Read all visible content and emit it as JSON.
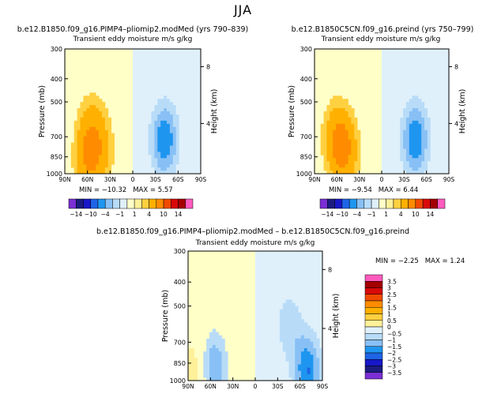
{
  "figure": {
    "season": "JJA"
  },
  "colors": {
    "palette_14": [
      "#7a2fd4",
      "#1c1c80",
      "#1818c8",
      "#1e64e6",
      "#1e96f0",
      "#88c0f5",
      "#b8dcf8",
      "#dff0fb",
      "#ffffc8",
      "#fff09a",
      "#ffd040",
      "#ffb000",
      "#ff8c00",
      "#f04a00",
      "#d80a0a",
      "#a40000",
      "#ff5bbf"
    ],
    "palette_diff": [
      "#7a2fd4",
      "#1c1c80",
      "#1818c8",
      "#1e64e6",
      "#1e96f0",
      "#88c0f5",
      "#b8dcf8",
      "#dff0fb",
      "#ffffc8",
      "#fff09a",
      "#ffd040",
      "#ffb000",
      "#ff8c00",
      "#f04a00",
      "#d80a0a",
      "#a40000",
      "#ff5bbf"
    ]
  },
  "chart_data": [
    {
      "id": "panel-pliomip",
      "type": "heatmap",
      "title": "b.e12.B1850.f09_g16.PIMP4–pliomip2.modMed (yrs 790–839)",
      "subtitle": "Transient eddy moisture m/s g/kg",
      "xlabel": "",
      "ylabel": "Pressure (mb)",
      "y2label": "Height (km)",
      "x_ticks": [
        "90N",
        "60N",
        "30N",
        "0",
        "30S",
        "60S",
        "90S"
      ],
      "y_ticks": [
        "300",
        "400",
        "500",
        "700",
        "850",
        "1000"
      ],
      "y2_ticks": [
        "8",
        "4"
      ],
      "ylim": [
        1000,
        300
      ],
      "min_label": "MIN =",
      "min_value": "−10.32",
      "max_label": "MAX =",
      "max_value": "5.57",
      "levels": [
        -14,
        -12,
        -10,
        -8,
        -6,
        -4,
        -2,
        -1,
        0,
        1,
        2,
        4,
        6,
        8,
        10,
        12,
        14
      ],
      "level_labels": [
        "−14",
        "−10",
        "−4",
        "−1",
        "1",
        "4",
        "10",
        "14"
      ],
      "features": [
        {
          "lat": 60,
          "p": 880,
          "value": 3.0,
          "kind": "max"
        },
        {
          "lat": 55,
          "p": 650,
          "value": 2.2,
          "kind": "secondary max"
        },
        {
          "lat": 42,
          "p": 800,
          "value": 2.0,
          "kind": "secondary max"
        },
        {
          "lat": -42,
          "p": 720,
          "value": -8.0,
          "kind": "min"
        }
      ]
    },
    {
      "id": "panel-preind",
      "type": "heatmap",
      "title": "b.e12.B1850C5CN.f09_g16.preind (yrs 750–799)",
      "subtitle": "Transient eddy moisture m/s g/kg",
      "xlabel": "",
      "ylabel": "Pressure (mb)",
      "y2label": "Height (km)",
      "x_ticks": [
        "90N",
        "60N",
        "30N",
        "0",
        "30S",
        "60S",
        "90S"
      ],
      "y_ticks": [
        "300",
        "400",
        "500",
        "700",
        "850",
        "1000"
      ],
      "y2_ticks": [
        "8",
        "4"
      ],
      "ylim": [
        1000,
        300
      ],
      "min_label": "MIN =",
      "min_value": "−9.54",
      "max_label": "MAX =",
      "max_value": "6.44",
      "levels": [
        -14,
        -12,
        -10,
        -8,
        -6,
        -4,
        -2,
        -1,
        0,
        1,
        2,
        4,
        6,
        8,
        10,
        12,
        14
      ],
      "level_labels": [
        "−14",
        "−10",
        "−4",
        "−1",
        "1",
        "4",
        "10",
        "14"
      ],
      "features": [
        {
          "lat": 50,
          "p": 800,
          "value": 4.0,
          "kind": "max"
        },
        {
          "lat": 62,
          "p": 700,
          "value": 2.5,
          "kind": "secondary max"
        },
        {
          "lat": -45,
          "p": 720,
          "value": -8.0,
          "kind": "min"
        }
      ]
    },
    {
      "id": "panel-diff",
      "type": "heatmap",
      "title": "b.e12.B1850.f09_g16.PIMP4–pliomip2.modMed – b.e12.B1850C5CN.f09_g16.preind",
      "subtitle": "Transient eddy moisture m/s g/kg",
      "xlabel": "",
      "ylabel": "Pressure (mb)",
      "y2label": "Height (km)",
      "x_ticks": [
        "90N",
        "60N",
        "30N",
        "0",
        "30S",
        "60S",
        "90S"
      ],
      "y_ticks": [
        "300",
        "400",
        "500",
        "700",
        "850",
        "1000"
      ],
      "y2_ticks": [
        "8",
        "4"
      ],
      "ylim": [
        1000,
        300
      ],
      "min_label": "MIN =",
      "min_value": "−2.25",
      "max_label": "MAX =",
      "max_value": "1.24",
      "levels": [
        -3.5,
        -3,
        -2.5,
        -2,
        -1.5,
        -1,
        -0.5,
        0,
        0.5,
        1,
        1.5,
        2,
        2.5,
        3,
        3.5
      ],
      "level_labels": [
        "3.5",
        "3",
        "2.5",
        "2",
        "1.5",
        "1",
        "0.5",
        "0",
        "−0.5",
        "−1",
        "−1.5",
        "−2",
        "−2.5",
        "−3",
        "−3.5"
      ],
      "features": [
        {
          "lat": 55,
          "p": 900,
          "value": -1.5,
          "kind": "min"
        },
        {
          "lat": 85,
          "p": 960,
          "value": 1.0,
          "kind": "max"
        },
        {
          "lat": -70,
          "p": 920,
          "value": -2.0,
          "kind": "min"
        },
        {
          "lat": -45,
          "p": 600,
          "value": -0.8,
          "kind": "negative"
        },
        {
          "lat": 10,
          "p": 700,
          "value": 0.3,
          "kind": "positive"
        }
      ]
    }
  ]
}
